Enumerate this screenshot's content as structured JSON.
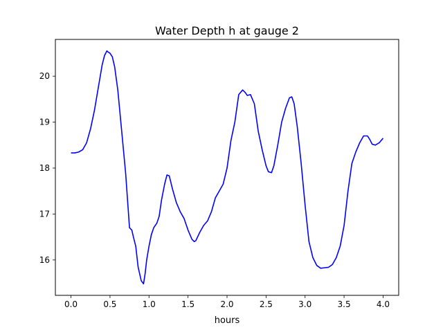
{
  "chart_data": {
    "type": "line",
    "title": "Water Depth h at gauge 2",
    "xlabel": "hours",
    "ylabel": "",
    "xlim": [
      -0.2,
      4.2
    ],
    "ylim": [
      15.23,
      20.8
    ],
    "xticks": [
      0.0,
      0.5,
      1.0,
      1.5,
      2.0,
      2.5,
      3.0,
      3.5,
      4.0
    ],
    "xtick_labels": [
      "0.0",
      "0.5",
      "1.0",
      "1.5",
      "2.0",
      "2.5",
      "3.0",
      "3.5",
      "4.0"
    ],
    "yticks": [
      16,
      17,
      18,
      19,
      20
    ],
    "ytick_labels": [
      "16",
      "17",
      "18",
      "19",
      "20"
    ],
    "grid": false,
    "series": [
      {
        "color": "#0000ff",
        "x": [
          0.0,
          0.05,
          0.1,
          0.15,
          0.2,
          0.25,
          0.3,
          0.35,
          0.4,
          0.43,
          0.46,
          0.48,
          0.5,
          0.53,
          0.56,
          0.6,
          0.65,
          0.7,
          0.75,
          0.78,
          0.8,
          0.83,
          0.86,
          0.9,
          0.93,
          0.95,
          0.97,
          1.0,
          1.03,
          1.06,
          1.1,
          1.13,
          1.16,
          1.2,
          1.23,
          1.26,
          1.3,
          1.35,
          1.4,
          1.45,
          1.5,
          1.55,
          1.58,
          1.6,
          1.65,
          1.7,
          1.75,
          1.8,
          1.85,
          1.9,
          1.95,
          2.0,
          2.05,
          2.1,
          2.15,
          2.2,
          2.23,
          2.26,
          2.3,
          2.35,
          2.4,
          2.45,
          2.5,
          2.53,
          2.57,
          2.6,
          2.65,
          2.7,
          2.75,
          2.8,
          2.83,
          2.86,
          2.9,
          2.95,
          3.0,
          3.05,
          3.1,
          3.15,
          3.2,
          3.25,
          3.3,
          3.35,
          3.4,
          3.45,
          3.5,
          3.55,
          3.6,
          3.65,
          3.7,
          3.75,
          3.8,
          3.83,
          3.86,
          3.9,
          3.95,
          4.0
        ],
        "values": [
          18.33,
          18.33,
          18.35,
          18.4,
          18.55,
          18.85,
          19.25,
          19.75,
          20.25,
          20.45,
          20.55,
          20.52,
          20.5,
          20.42,
          20.2,
          19.7,
          18.8,
          17.9,
          16.7,
          16.65,
          16.5,
          16.3,
          15.85,
          15.55,
          15.48,
          15.7,
          16.0,
          16.3,
          16.55,
          16.7,
          16.8,
          16.95,
          17.3,
          17.65,
          17.85,
          17.83,
          17.55,
          17.25,
          17.05,
          16.9,
          16.65,
          16.45,
          16.4,
          16.42,
          16.6,
          16.75,
          16.85,
          17.05,
          17.35,
          17.5,
          17.65,
          18.0,
          18.6,
          19.0,
          19.6,
          19.7,
          19.65,
          19.58,
          19.6,
          19.4,
          18.8,
          18.4,
          18.05,
          17.92,
          17.9,
          18.05,
          18.5,
          19.0,
          19.3,
          19.53,
          19.55,
          19.4,
          18.9,
          18.1,
          17.2,
          16.4,
          16.05,
          15.88,
          15.82,
          15.83,
          15.84,
          15.9,
          16.05,
          16.3,
          16.75,
          17.5,
          18.1,
          18.35,
          18.55,
          18.7,
          18.7,
          18.62,
          18.52,
          18.5,
          18.55,
          18.65
        ]
      }
    ]
  }
}
